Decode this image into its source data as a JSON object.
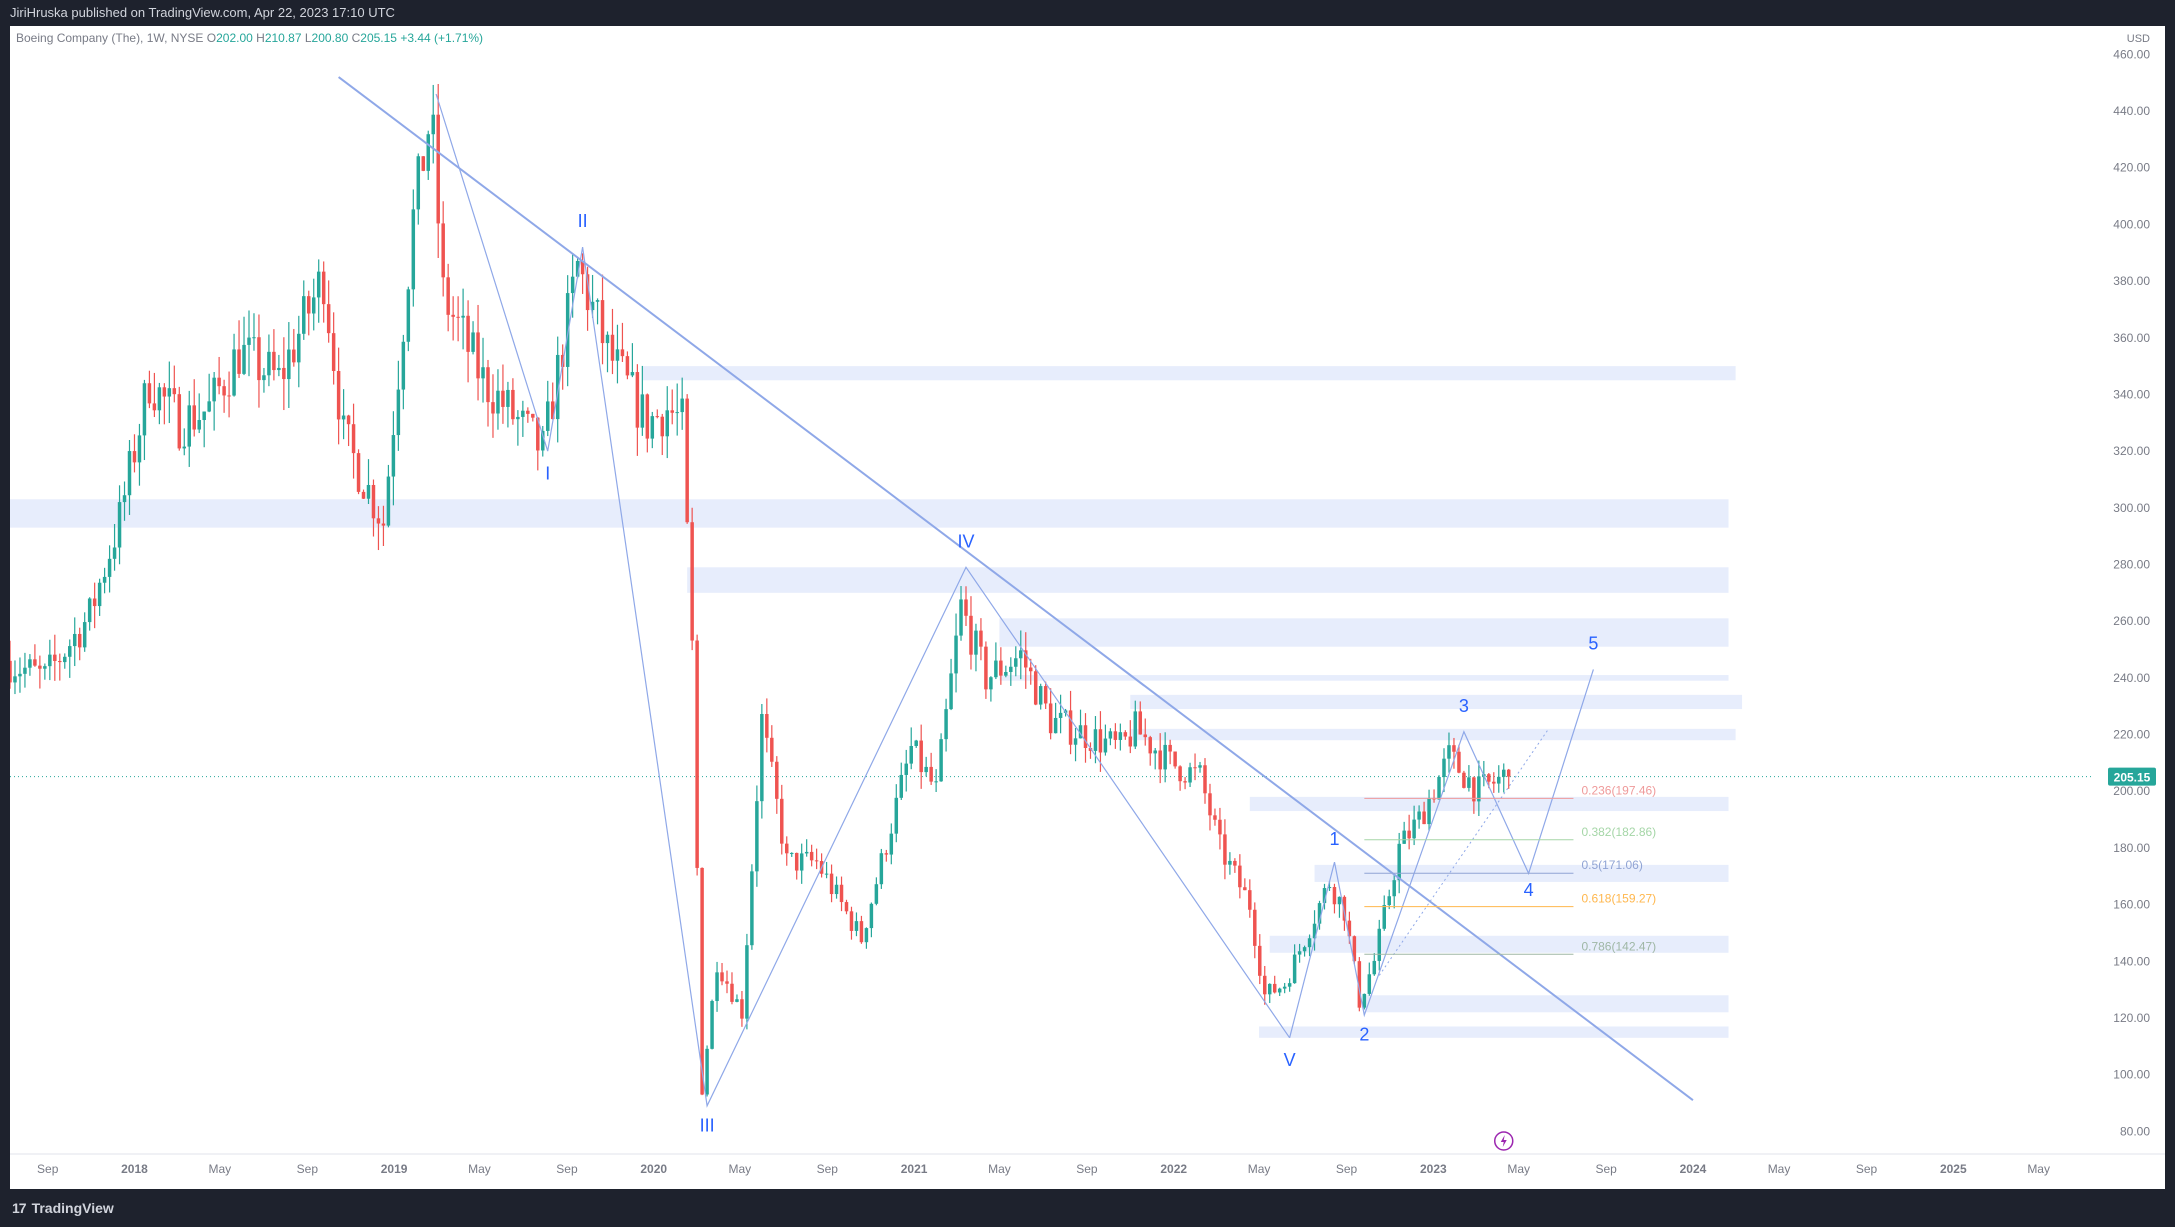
{
  "header": {
    "published_text": "JiriHruska published on TradingView.com, Apr 22, 2023 17:10 UTC"
  },
  "footer": {
    "brand": "TradingView",
    "brand_glyph": "17"
  },
  "colors": {
    "up": "#26a69a",
    "down": "#ef5350",
    "zone": "#e3eafc",
    "line": "#8fa8e8",
    "wave_label": "#2962ff",
    "price_badge": "#26a69a"
  },
  "chart_data": {
    "type": "candlestick",
    "symbol_info": {
      "name": "Boeing Company (The), 1W, NYSE",
      "open_label": "O",
      "open": "202.00",
      "high_label": "H",
      "high": "210.87",
      "low_label": "L",
      "low": "200.80",
      "close_label": "C",
      "close": "205.15",
      "change": "+3.44 (+1.71%)"
    },
    "currency": "USD",
    "last_price": 205.15,
    "last_price_label": "205.15",
    "y_axis": {
      "range": [
        72,
        470
      ],
      "ticks": [
        "460.00",
        "440.00",
        "420.00",
        "400.00",
        "380.00",
        "360.00",
        "340.00",
        "320.00",
        "300.00",
        "280.00",
        "260.00",
        "240.00",
        "220.00",
        "200.00",
        "180.00",
        "160.00",
        "140.00",
        "120.00",
        "100.00",
        "80.00"
      ]
    },
    "x_axis": {
      "range": [
        "2017-07-10",
        "2025-07-15"
      ],
      "ticks": [
        {
          "label": "Sep",
          "date": "2017-09-01"
        },
        {
          "label": "2018",
          "date": "2018-01-01"
        },
        {
          "label": "May",
          "date": "2018-05-01"
        },
        {
          "label": "Sep",
          "date": "2018-09-01"
        },
        {
          "label": "2019",
          "date": "2019-01-01"
        },
        {
          "label": "May",
          "date": "2019-05-01"
        },
        {
          "label": "Sep",
          "date": "2019-09-01"
        },
        {
          "label": "2020",
          "date": "2020-01-01"
        },
        {
          "label": "May",
          "date": "2020-05-01"
        },
        {
          "label": "Sep",
          "date": "2020-09-01"
        },
        {
          "label": "2021",
          "date": "2021-01-01"
        },
        {
          "label": "May",
          "date": "2021-05-01"
        },
        {
          "label": "Sep",
          "date": "2021-09-01"
        },
        {
          "label": "2022",
          "date": "2022-01-01"
        },
        {
          "label": "May",
          "date": "2022-05-01"
        },
        {
          "label": "Sep",
          "date": "2022-09-01"
        },
        {
          "label": "2023",
          "date": "2023-01-01"
        },
        {
          "label": "May",
          "date": "2023-05-01"
        },
        {
          "label": "Sep",
          "date": "2023-09-01"
        },
        {
          "label": "2024",
          "date": "2024-01-01"
        },
        {
          "label": "May",
          "date": "2024-05-01"
        },
        {
          "label": "Sep",
          "date": "2024-09-01"
        },
        {
          "label": "2025",
          "date": "2025-01-01"
        },
        {
          "label": "May",
          "date": "2025-05-01"
        }
      ]
    },
    "price_path": [
      [
        "2017-07-10",
        246
      ],
      [
        "2017-09-04",
        240
      ],
      [
        "2017-11-06",
        262
      ],
      [
        "2017-12-18",
        296
      ],
      [
        "2018-01-29",
        345
      ],
      [
        "2018-03-12",
        330
      ],
      [
        "2018-04-23",
        335
      ],
      [
        "2018-06-04",
        355
      ],
      [
        "2018-07-30",
        345
      ],
      [
        "2018-10-01",
        382
      ],
      [
        "2018-10-29",
        325
      ],
      [
        "2018-12-24",
        295
      ],
      [
        "2019-02-04",
        402
      ],
      [
        "2019-03-01",
        440
      ],
      [
        "2019-03-18",
        375
      ],
      [
        "2019-05-13",
        345
      ],
      [
        "2019-08-05",
        320
      ],
      [
        "2019-09-23",
        385
      ],
      [
        "2019-11-04",
        355
      ],
      [
        "2019-12-30",
        330
      ],
      [
        "2020-01-27",
        335
      ],
      [
        "2020-02-17",
        330
      ],
      [
        "2020-03-02",
        250
      ],
      [
        "2020-03-16",
        95
      ],
      [
        "2020-04-06",
        140
      ],
      [
        "2020-05-11",
        122
      ],
      [
        "2020-06-08",
        225
      ],
      [
        "2020-07-13",
        175
      ],
      [
        "2020-08-24",
        175
      ],
      [
        "2020-10-26",
        148
      ],
      [
        "2021-01-04",
        215
      ],
      [
        "2021-02-08",
        200
      ],
      [
        "2021-03-15",
        265
      ],
      [
        "2021-04-19",
        240
      ],
      [
        "2021-06-07",
        248
      ],
      [
        "2021-07-19",
        225
      ],
      [
        "2021-09-06",
        220
      ],
      [
        "2021-10-25",
        215
      ],
      [
        "2021-11-15",
        222
      ],
      [
        "2022-01-03",
        210
      ],
      [
        "2022-02-14",
        205
      ],
      [
        "2022-03-14",
        180
      ],
      [
        "2022-04-25",
        160
      ],
      [
        "2022-05-16",
        128
      ],
      [
        "2022-06-13",
        132
      ],
      [
        "2022-07-18",
        152
      ],
      [
        "2022-08-15",
        168
      ],
      [
        "2022-09-05",
        158
      ],
      [
        "2022-09-26",
        126
      ],
      [
        "2022-10-17",
        140
      ],
      [
        "2022-11-21",
        180
      ],
      [
        "2022-12-19",
        190
      ],
      [
        "2023-01-30",
        212
      ],
      [
        "2023-02-13",
        208
      ],
      [
        "2023-03-13",
        200
      ],
      [
        "2023-04-17",
        205
      ]
    ],
    "annotations": {
      "trendlines": [
        {
          "from": [
            "2018-10-15",
            452
          ],
          "to": [
            "2024-01-01",
            91
          ]
        }
      ],
      "wave_path_major": [
        [
          "2019-03-01",
          446
        ],
        [
          "2019-08-05",
          320
        ],
        [
          "2019-09-23",
          392
        ],
        [
          "2020-03-16",
          89
        ],
        [
          "2021-03-15",
          279
        ],
        [
          "2022-06-13",
          113
        ]
      ],
      "wave_path_minor": [
        [
          "2022-06-13",
          113
        ],
        [
          "2022-08-15",
          175
        ],
        [
          "2022-09-26",
          121
        ],
        [
          "2023-02-13",
          221
        ],
        [
          "2023-05-15",
          171
        ],
        [
          "2023-08-14",
          243
        ]
      ],
      "wave_labels": [
        {
          "text": "I",
          "date": "2019-08-05",
          "price": 310
        },
        {
          "text": "II",
          "date": "2019-09-23",
          "price": 399
        },
        {
          "text": "III",
          "date": "2020-03-16",
          "price": 80
        },
        {
          "text": "IV",
          "date": "2021-03-15",
          "price": 286
        },
        {
          "text": "V",
          "date": "2022-06-13",
          "price": 103
        },
        {
          "text": "1",
          "date": "2022-08-15",
          "price": 181
        },
        {
          "text": "2",
          "date": "2022-09-26",
          "price": 112
        },
        {
          "text": "3",
          "date": "2023-02-13",
          "price": 228
        },
        {
          "text": "4",
          "date": "2023-05-15",
          "price": 163
        },
        {
          "text": "5",
          "date": "2023-08-14",
          "price": 250
        }
      ],
      "fib_levels": [
        {
          "label": "0.236(197.46)",
          "value": 197.46,
          "color": "#ef9a9a"
        },
        {
          "label": "0.382(182.86)",
          "value": 182.86,
          "color": "#a5d6a7"
        },
        {
          "label": "0.5(171.06)",
          "value": 171.06,
          "color": "#90a4d4"
        },
        {
          "label": "0.618(159.27)",
          "value": 159.27,
          "color": "#ffb74d"
        },
        {
          "label": "0.786(142.47)",
          "value": 142.47,
          "color": "#9fb7a5"
        }
      ],
      "zones": [
        {
          "from": "2019-12-16",
          "to": "2024-03-01",
          "low": 345,
          "high": 350
        },
        {
          "from": "2017-07-10",
          "to": "2024-02-20",
          "low": 293,
          "high": 303
        },
        {
          "from": "2020-02-17",
          "to": "2024-02-20",
          "low": 270,
          "high": 279
        },
        {
          "from": "2021-05-01",
          "to": "2024-02-20",
          "low": 251,
          "high": 261
        },
        {
          "from": "2021-05-01",
          "to": "2024-02-20",
          "low": 239,
          "high": 241
        },
        {
          "from": "2021-11-01",
          "to": "2024-03-10",
          "low": 229,
          "high": 234
        },
        {
          "from": "2021-11-01",
          "to": "2024-03-01",
          "low": 218,
          "high": 222
        },
        {
          "from": "2022-04-18",
          "to": "2024-02-20",
          "low": 193,
          "high": 198
        },
        {
          "from": "2022-07-18",
          "to": "2024-02-20",
          "low": 168,
          "high": 174
        },
        {
          "from": "2022-05-16",
          "to": "2024-02-20",
          "low": 143,
          "high": 149
        },
        {
          "from": "2022-09-26",
          "to": "2024-02-20",
          "low": 122,
          "high": 128
        },
        {
          "from": "2022-05-01",
          "to": "2024-02-20",
          "low": 113,
          "high": 117
        }
      ]
    }
  }
}
